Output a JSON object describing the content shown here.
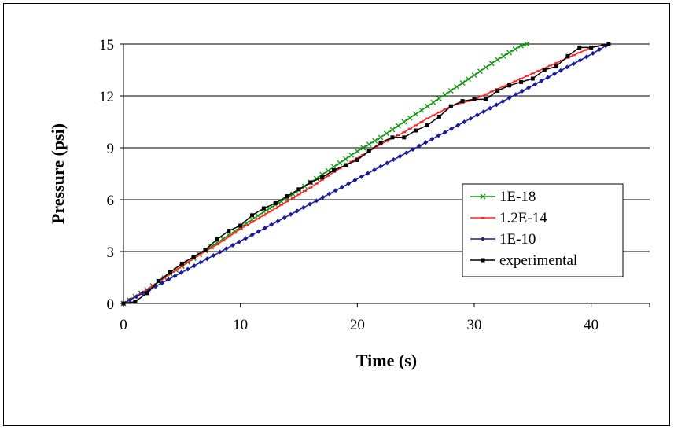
{
  "chart_data": {
    "type": "line",
    "title": "",
    "xlabel": "Time (s)",
    "ylabel": "Pressure (psi)",
    "xlim": [
      0,
      45
    ],
    "ylim": [
      0,
      15
    ],
    "xticks": [
      "0",
      "10",
      "20",
      "30",
      "40"
    ],
    "xtick_values": [
      0,
      10,
      20,
      30,
      40
    ],
    "yticks": [
      "0",
      "3",
      "6",
      "9",
      "12",
      "15"
    ],
    "ytick_values": [
      0,
      3,
      6,
      9,
      12,
      15
    ],
    "grid": "horizontal",
    "legend_position": "right",
    "series": [
      {
        "name": "1E-18",
        "color": "#119911",
        "marker": "x",
        "x": [
          0,
          2,
          4,
          6,
          8,
          10,
          12,
          14,
          16,
          18,
          20,
          22,
          24,
          26,
          28,
          30,
          32,
          34,
          34.5
        ],
        "y": [
          0,
          0.8,
          1.7,
          2.6,
          3.5,
          4.4,
          5.3,
          6.1,
          7.0,
          7.9,
          8.8,
          9.6,
          10.5,
          11.4,
          12.3,
          13.2,
          14.1,
          14.9,
          15.0
        ]
      },
      {
        "name": "1.2E-14",
        "color": "#ff2020",
        "marker": "dash",
        "x": [
          0,
          2,
          4,
          6,
          8,
          10,
          12,
          14,
          16,
          18,
          20,
          22,
          24,
          26,
          28,
          30,
          32,
          34,
          36,
          38,
          40,
          41.5
        ],
        "y": [
          0,
          0.8,
          1.7,
          2.6,
          3.4,
          4.3,
          5.1,
          5.9,
          6.7,
          7.6,
          8.4,
          9.2,
          9.9,
          10.7,
          11.4,
          11.8,
          12.4,
          13.0,
          13.6,
          14.2,
          14.8,
          15.0
        ]
      },
      {
        "name": "1E-10",
        "color": "#1b1b9e",
        "marker": "diamond",
        "x": [
          0,
          5,
          10,
          15,
          20,
          25,
          30,
          35,
          40,
          41.5
        ],
        "y": [
          0,
          1.8,
          3.6,
          5.4,
          7.2,
          9.0,
          10.8,
          12.6,
          14.4,
          15.0
        ]
      },
      {
        "name": "experimental",
        "color": "#000000",
        "marker": "square",
        "x": [
          0,
          1,
          2,
          3,
          4,
          5,
          6,
          7,
          8,
          9,
          10,
          11,
          12,
          13,
          14,
          15,
          16,
          17,
          18,
          19,
          20,
          21,
          22,
          23,
          24,
          25,
          26,
          27,
          28,
          29,
          30,
          31,
          32,
          33,
          34,
          35,
          36,
          37,
          38,
          39,
          40,
          41.5
        ],
        "y": [
          0,
          0.1,
          0.6,
          1.3,
          1.8,
          2.3,
          2.7,
          3.1,
          3.7,
          4.2,
          4.5,
          5.1,
          5.5,
          5.8,
          6.2,
          6.6,
          7.0,
          7.3,
          7.7,
          8.0,
          8.3,
          8.8,
          9.3,
          9.6,
          9.6,
          10.0,
          10.3,
          10.8,
          11.4,
          11.7,
          11.8,
          11.8,
          12.3,
          12.6,
          12.8,
          13.0,
          13.5,
          13.7,
          14.3,
          14.8,
          14.8,
          15.0
        ]
      }
    ]
  }
}
